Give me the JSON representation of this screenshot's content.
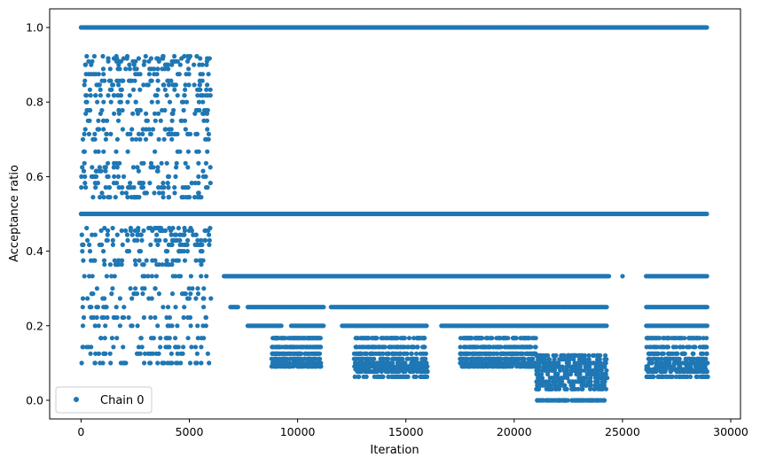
{
  "chart_data": {
    "type": "scatter",
    "title": "",
    "xlabel": "Iteration",
    "ylabel": "Acceptance ratio",
    "xlim": [
      -1450,
      30450
    ],
    "ylim": [
      -0.05,
      1.05
    ],
    "x_ticks": [
      0,
      5000,
      10000,
      15000,
      20000,
      25000,
      30000
    ],
    "y_ticks": [
      0.0,
      0.2,
      0.4,
      0.6,
      0.8,
      1.0
    ],
    "x_tick_labels": [
      "0",
      "5000",
      "10000",
      "15000",
      "20000",
      "25000",
      "30000"
    ],
    "y_tick_labels": [
      "0.0",
      "0.2",
      "0.4",
      "0.6",
      "0.8",
      "1.0"
    ],
    "grid": false,
    "legend": {
      "position": "lower-left",
      "entries": [
        "Chain 0"
      ]
    },
    "series": [
      {
        "name": "Chain 0",
        "color": "#1f77b4",
        "marker": "circle",
        "bands": [
          {
            "x": [
              0,
              28950
            ],
            "y": 1.0
          },
          {
            "x": [
              0,
              28950
            ],
            "y": 0.5
          },
          {
            "x": [
              6600,
              28950
            ],
            "y": 0.333,
            "gaps": [
              [
                24400,
                24950
              ],
              [
                25050,
                26050
              ]
            ]
          },
          {
            "x": [
              6900,
              24300
            ],
            "y": 0.25,
            "gaps": [
              [
                7300,
                7700
              ],
              [
                11200,
                11500
              ]
            ]
          },
          {
            "x": [
              26100,
              28950
            ],
            "y": 0.25
          },
          {
            "x": [
              7700,
              24300
            ],
            "y": 0.2,
            "gaps": [
              [
                9300,
                9700
              ],
              [
                11200,
                12000
              ],
              [
                16000,
                16600
              ]
            ]
          },
          {
            "x": [
              26100,
              28950
            ],
            "y": 0.2
          }
        ],
        "clusters": [
          {
            "x": [
              0,
              6000
            ],
            "y": [
              0.08,
              0.94
            ],
            "levels": [
              0.1,
              0.125,
              0.143,
              0.167,
              0.2,
              0.222,
              0.25,
              0.273,
              0.286,
              0.3,
              0.333,
              0.364,
              0.375,
              0.4,
              0.417,
              0.429,
              0.444,
              0.455,
              0.462,
              0.545,
              0.556,
              0.571,
              0.583,
              0.6,
              0.615,
              0.625,
              0.636,
              0.667,
              0.7,
              0.714,
              0.727,
              0.75,
              0.769,
              0.778,
              0.8,
              0.818,
              0.833,
              0.846,
              0.857,
              0.875,
              0.889,
              0.9,
              0.909,
              0.917,
              0.923
            ]
          },
          {
            "x": [
              8800,
              11100
            ],
            "y": [
              0.09,
              0.18
            ],
            "levels": [
              0.091,
              0.1,
              0.111,
              0.125,
              0.143,
              0.167
            ]
          },
          {
            "x": [
              12600,
              16000
            ],
            "y": [
              0.06,
              0.18
            ],
            "levels": [
              0.063,
              0.077,
              0.083,
              0.091,
              0.1,
              0.111,
              0.125,
              0.143,
              0.167
            ]
          },
          {
            "x": [
              17500,
              21000
            ],
            "y": [
              0.09,
              0.18
            ],
            "levels": [
              0.091,
              0.1,
              0.111,
              0.125,
              0.143,
              0.167
            ]
          },
          {
            "x": [
              21000,
              24300
            ],
            "y": [
              0.0,
              0.13
            ],
            "levels": [
              0.0,
              0.0,
              0.0,
              0.03,
              0.04,
              0.05,
              0.06,
              0.07,
              0.08,
              0.09,
              0.1,
              0.11,
              0.12
            ]
          },
          {
            "x": [
              26100,
              28950
            ],
            "y": [
              0.06,
              0.18
            ],
            "levels": [
              0.063,
              0.077,
              0.083,
              0.091,
              0.1,
              0.111,
              0.125,
              0.143,
              0.167
            ]
          }
        ]
      }
    ]
  }
}
